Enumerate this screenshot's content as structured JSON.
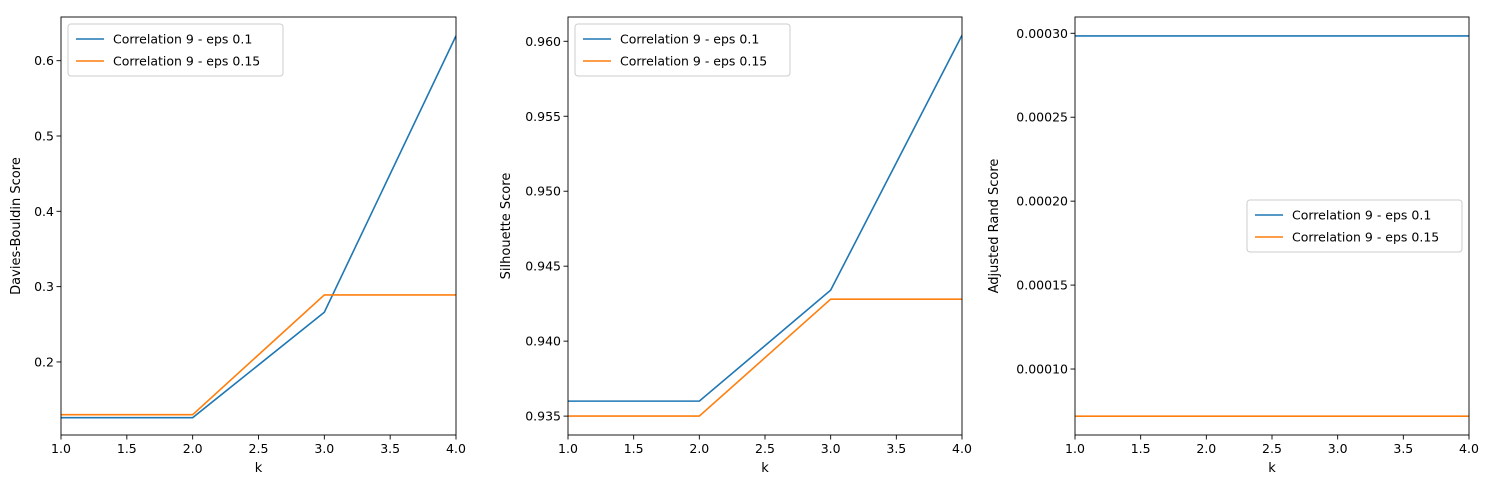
{
  "chart_data": [
    {
      "type": "line",
      "xlabel": "k",
      "ylabel": "Davies-Bouldin Score",
      "xlim": [
        1.0,
        4.0
      ],
      "ylim": [
        0.103,
        0.658
      ],
      "xticks": [
        "1.0",
        "1.5",
        "2.0",
        "2.5",
        "3.0",
        "3.5",
        "4.0"
      ],
      "xtick_values": [
        1.0,
        1.5,
        2.0,
        2.5,
        3.0,
        3.5,
        4.0
      ],
      "yticks": [
        "0.2",
        "0.3",
        "0.4",
        "0.5",
        "0.6"
      ],
      "ytick_values": [
        0.2,
        0.3,
        0.4,
        0.5,
        0.6
      ],
      "legend_position": "upper left",
      "series": [
        {
          "name": "Correlation 9 - eps 0.1",
          "color": "#1f77b4",
          "x": [
            1,
            2,
            3,
            4
          ],
          "y": [
            0.126,
            0.126,
            0.266,
            0.633
          ]
        },
        {
          "name": "Correlation 9 - eps 0.15",
          "color": "#ff7f0e",
          "x": [
            1,
            2,
            3,
            4
          ],
          "y": [
            0.13,
            0.13,
            0.289,
            0.289
          ]
        }
      ]
    },
    {
      "type": "line",
      "xlabel": "k",
      "ylabel": "Silhouette Score",
      "xlim": [
        1.0,
        4.0
      ],
      "ylim": [
        0.93374,
        0.96162
      ],
      "xticks": [
        "1.0",
        "1.5",
        "2.0",
        "2.5",
        "3.0",
        "3.5",
        "4.0"
      ],
      "xtick_values": [
        1.0,
        1.5,
        2.0,
        2.5,
        3.0,
        3.5,
        4.0
      ],
      "yticks": [
        "0.935",
        "0.940",
        "0.945",
        "0.950",
        "0.955",
        "0.960"
      ],
      "ytick_values": [
        0.935,
        0.94,
        0.945,
        0.95,
        0.955,
        0.96
      ],
      "legend_position": "upper left",
      "series": [
        {
          "name": "Correlation 9 - eps 0.1",
          "color": "#1f77b4",
          "x": [
            1,
            2,
            3,
            4
          ],
          "y": [
            0.936,
            0.936,
            0.9434,
            0.9604
          ]
        },
        {
          "name": "Correlation 9 - eps 0.15",
          "color": "#ff7f0e",
          "x": [
            1,
            2,
            3,
            4
          ],
          "y": [
            0.935,
            0.935,
            0.9428,
            0.9428
          ]
        }
      ]
    },
    {
      "type": "line",
      "xlabel": "k",
      "ylabel": "Adjusted Rand Score",
      "xlim": [
        1.0,
        4.0
      ],
      "ylim": [
        6.07e-05,
        0.0003097
      ],
      "xticks": [
        "1.0",
        "1.5",
        "2.0",
        "2.5",
        "3.0",
        "3.5",
        "4.0"
      ],
      "xtick_values": [
        1.0,
        1.5,
        2.0,
        2.5,
        3.0,
        3.5,
        4.0
      ],
      "yticks": [
        "0.00010",
        "0.00015",
        "0.00020",
        "0.00025",
        "0.00030"
      ],
      "ytick_values": [
        0.0001,
        0.00015,
        0.0002,
        0.00025,
        0.0003
      ],
      "legend_position": "center right",
      "series": [
        {
          "name": "Correlation 9 - eps 0.1",
          "color": "#1f77b4",
          "x": [
            1,
            2,
            3,
            4
          ],
          "y": [
            0.0002984,
            0.0002984,
            0.0002984,
            0.0002984
          ]
        },
        {
          "name": "Correlation 9 - eps 0.15",
          "color": "#ff7f0e",
          "x": [
            1,
            2,
            3,
            4
          ],
          "y": [
            7.19e-05,
            7.19e-05,
            7.19e-05,
            7.19e-05
          ]
        }
      ]
    }
  ]
}
